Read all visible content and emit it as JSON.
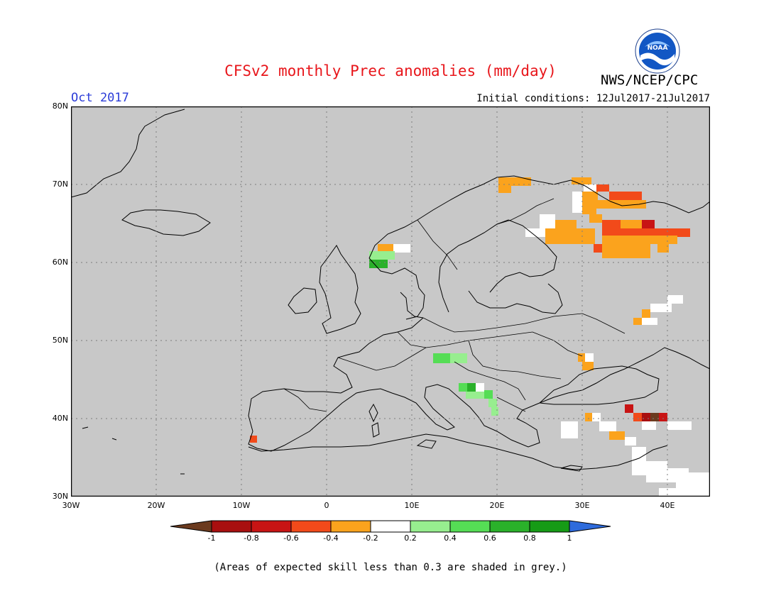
{
  "header": {
    "title": "CFSv2 monthly Prec anomalies (mm/day)",
    "agency": "NWS/NCEP/CPC",
    "period": "Oct 2017",
    "initial_conditions": "Initial conditions: 12Jul2017-21Jul2017",
    "logo_text": "NOAA"
  },
  "map": {
    "region": {
      "lon_range": [
        -30,
        45
      ],
      "lat_range": [
        30,
        80
      ]
    },
    "background": "#c8c8c8",
    "lat_ticks": [
      "80N",
      "70N",
      "60N",
      "50N",
      "40N",
      "30N"
    ],
    "lon_ticks": [
      "30W",
      "20W",
      "10W",
      "0",
      "10E",
      "20E",
      "30E",
      "40E"
    ],
    "gridlines": "dotted"
  },
  "colorbar": {
    "labels": [
      "-1",
      "-0.8",
      "-0.6",
      "-0.4",
      "-0.2",
      "0.2",
      "0.4",
      "0.6",
      "0.8",
      "1"
    ],
    "colors": {
      "below_-1": "#6b3a1e",
      "-1_-0.8": "#a80f0f",
      "-0.8_-0.6": "#c81414",
      "-0.6_-0.4": "#f24a1a",
      "-0.4_-0.2": "#fba31d",
      "-0.2_0.2": "#ffffff",
      "0.2_0.4": "#97ee8f",
      "0.4_0.6": "#55dd55",
      "0.6_0.8": "#2ab12a",
      "0.8_1": "#169b16",
      "above_1": "#2e6bdc"
    }
  },
  "footnote": "(Areas of expected skill less than 0.3 are shaded in grey.)"
}
